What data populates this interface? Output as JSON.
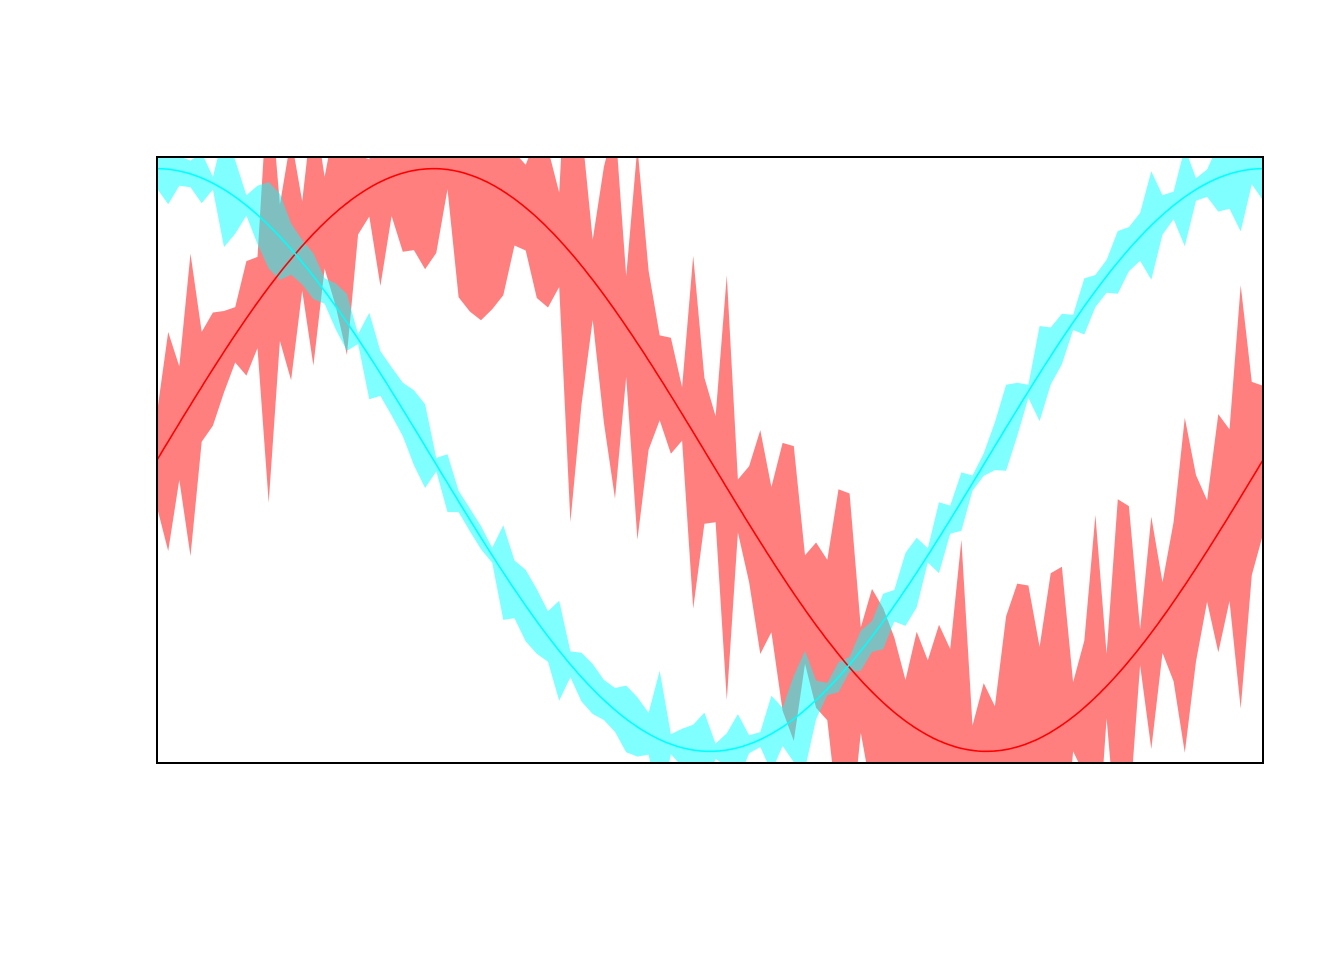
{
  "chart_data": {
    "type": "area",
    "title": "",
    "xlabel": "",
    "ylabel": "",
    "xlim": [
      0,
      6.283
    ],
    "ylim": [
      -1.04,
      1.04
    ],
    "grid": false,
    "axes_ticks": false,
    "band_points": 100,
    "series": [
      {
        "key": "sin",
        "color": "#ff0000",
        "band_color": "#ff0000",
        "band_opacity": 0.5,
        "function": "sin",
        "band_noise_sd": 0.15
      },
      {
        "key": "cos",
        "color": "#00ffff",
        "band_color": "#00ffff",
        "band_opacity": 0.5,
        "function": "cos",
        "band_noise_sd": 0.04
      }
    ]
  }
}
